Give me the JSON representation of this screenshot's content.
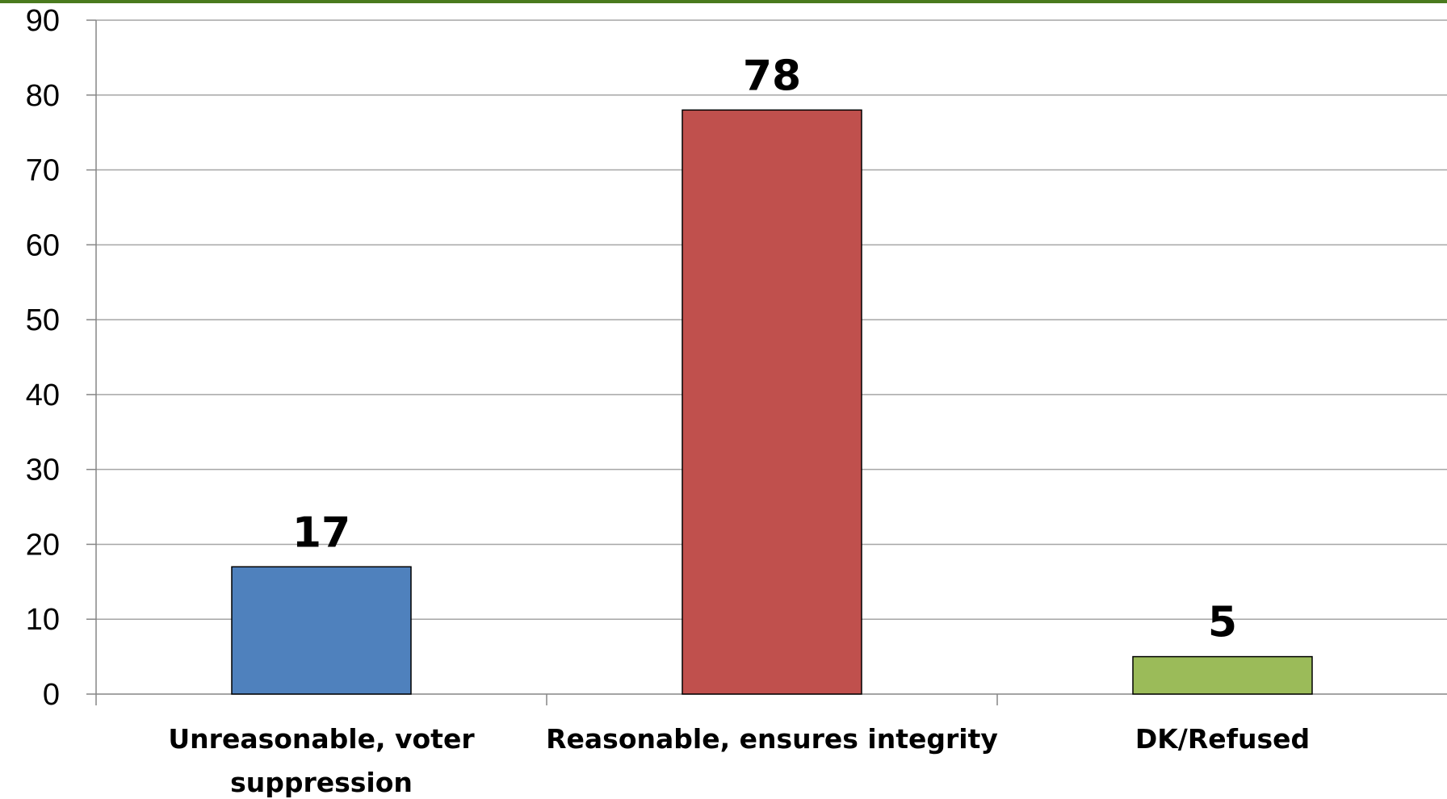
{
  "chart_data": {
    "type": "bar",
    "categories": [
      [
        "Unreasonable, voter",
        "suppression"
      ],
      [
        "Reasonable, ensures integrity"
      ],
      [
        "DK/Refused"
      ]
    ],
    "values": [
      17,
      78,
      5
    ],
    "colors": [
      "#4f81bd",
      "#c0504d",
      "#9bbb59"
    ],
    "ylim": [
      0,
      90
    ],
    "yticks": [
      0,
      10,
      20,
      30,
      40,
      50,
      60,
      70,
      80,
      90
    ],
    "grid": true,
    "title": "",
    "xlabel": "",
    "ylabel": ""
  }
}
